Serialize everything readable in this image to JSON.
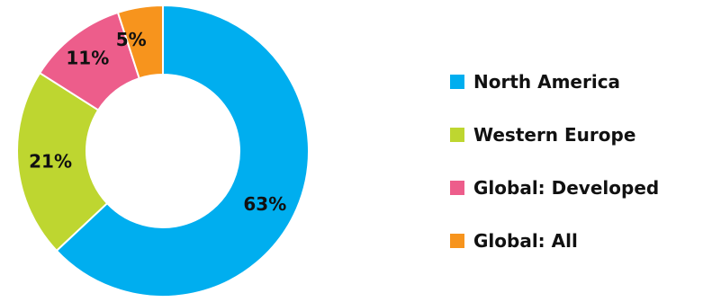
{
  "chart_data": {
    "type": "pie",
    "donut": true,
    "categories": [
      "North America",
      "Western Europe",
      "Global: Developed",
      "Global: All"
    ],
    "values": [
      63,
      21,
      11,
      5
    ],
    "labels": [
      "63%",
      "21%",
      "11%",
      "5%"
    ],
    "colors": [
      "#00aeef",
      "#bed630",
      "#ed5d8b",
      "#f7941d"
    ],
    "legend_position": "right"
  }
}
